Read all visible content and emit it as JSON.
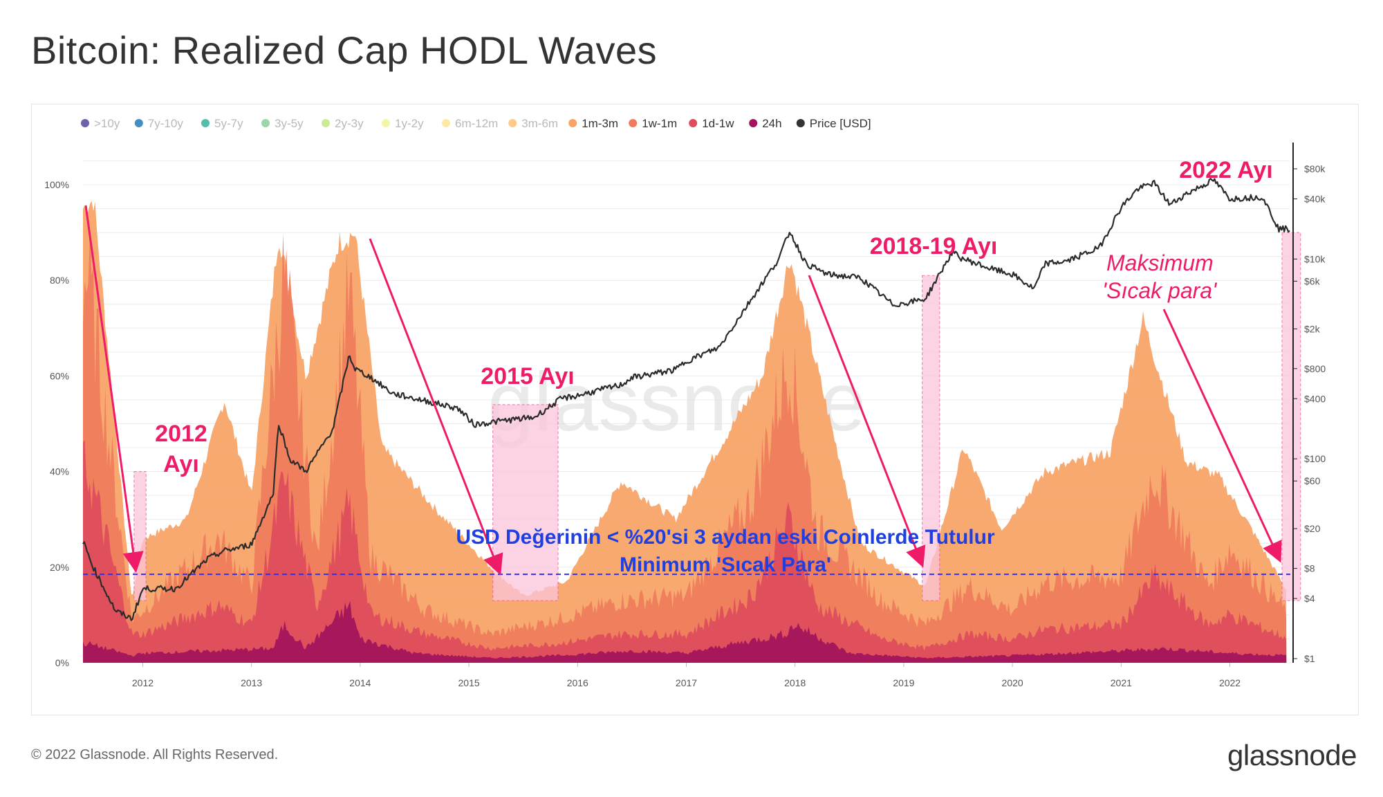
{
  "title": "Bitcoin: Realized Cap HODL Waves",
  "footer": {
    "copyright": "© 2022 Glassnode. All Rights Reserved.",
    "logo": "glassnode"
  },
  "watermark": "glassnode",
  "legend": [
    {
      "label": ">10y",
      "color": "#5e4fa2",
      "active": false
    },
    {
      "label": "7y-10y",
      "color": "#3182bd",
      "active": false
    },
    {
      "label": "5y-7y",
      "color": "#3fb8a0",
      "active": false
    },
    {
      "label": "3y-5y",
      "color": "#8fd19e",
      "active": false
    },
    {
      "label": "2y-3y",
      "color": "#c6e88a",
      "active": false
    },
    {
      "label": "1y-2y",
      "color": "#f2f59c",
      "active": false
    },
    {
      "label": "6m-12m",
      "color": "#fde69a",
      "active": false
    },
    {
      "label": "3m-6m",
      "color": "#fdc57a",
      "active": false
    },
    {
      "label": "1m-3m",
      "color": "#f8a468",
      "active": true
    },
    {
      "label": "1w-1m",
      "color": "#ef7c5c",
      "active": true
    },
    {
      "label": "1d-1w",
      "color": "#dd4d5c",
      "active": true
    },
    {
      "label": "24h",
      "color": "#a3145c",
      "active": true
    },
    {
      "label": "Price [USD]",
      "color": "#333333",
      "active": true
    }
  ],
  "chart_data": {
    "type": "area",
    "title": "Bitcoin: Realized Cap HODL Waves",
    "x_ticks": [
      "2012",
      "2013",
      "2014",
      "2015",
      "2016",
      "2017",
      "2018",
      "2019",
      "2020",
      "2021",
      "2022"
    ],
    "x_range": [
      2011.45,
      2022.55
    ],
    "y_left_ticks": [
      "0%",
      "20%",
      "40%",
      "60%",
      "80%",
      "100%"
    ],
    "y_left_range": [
      0,
      100
    ],
    "y_right_ticks": [
      "$1",
      "$4",
      "$8",
      "$20",
      "$60",
      "$100",
      "$400",
      "$800",
      "$2k",
      "$6k",
      "$10k",
      "$40k",
      "$80k"
    ],
    "y_right_range_log": [
      1,
      100000
    ],
    "series_cumulative_from_bottom": [
      {
        "name": "24h",
        "color": "#a3145c",
        "x": [
          2011.5,
          2011.9,
          2012.0,
          2013.2,
          2013.3,
          2013.5,
          2013.9,
          2014.0,
          2014.5,
          2015.2,
          2015.8,
          2016.5,
          2017.0,
          2017.9,
          2018.0,
          2018.5,
          2019.2,
          2020.0,
          2020.5,
          2021.0,
          2021.4,
          2022.0,
          2022.55
        ],
        "values": [
          4,
          1.5,
          2,
          3,
          8,
          3,
          12,
          5,
          2,
          1,
          1.5,
          2.5,
          2,
          6,
          8,
          2,
          1,
          1.5,
          2,
          2.5,
          3,
          2,
          1.5
        ]
      },
      {
        "name": "1d-1w",
        "color": "#dd4d5c",
        "x": [
          2011.5,
          2011.9,
          2012.0,
          2012.7,
          2013.0,
          2013.3,
          2013.6,
          2013.9,
          2014.1,
          2014.6,
          2015.2,
          2015.8,
          2016.4,
          2017.0,
          2017.6,
          2017.95,
          2018.2,
          2018.8,
          2019.2,
          2019.6,
          2020.0,
          2020.3,
          2021.0,
          2021.3,
          2021.8,
          2022.0,
          2022.55
        ],
        "values": [
          40,
          6,
          6,
          12,
          8,
          38,
          12,
          33,
          10,
          6,
          3,
          4,
          6,
          6,
          14,
          30,
          12,
          5,
          3,
          6,
          5,
          7,
          8,
          18,
          8,
          10,
          5
        ]
      },
      {
        "name": "1w-1m",
        "color": "#ef7c5c",
        "x": [
          2011.5,
          2011.9,
          2012.0,
          2012.7,
          2013.0,
          2013.3,
          2013.6,
          2013.9,
          2014.1,
          2014.6,
          2015.2,
          2015.8,
          2016.4,
          2017.0,
          2017.6,
          2017.95,
          2018.2,
          2018.8,
          2019.2,
          2019.6,
          2020.0,
          2020.3,
          2021.0,
          2021.3,
          2021.8,
          2022.0,
          2022.55
        ],
        "values": [
          80,
          9,
          11,
          26,
          16,
          82,
          22,
          78,
          22,
          11,
          6,
          9,
          13,
          14,
          34,
          64,
          28,
          13,
          8,
          16,
          11,
          17,
          18,
          40,
          16,
          24,
          10
        ]
      },
      {
        "name": "1m-3m",
        "color": "#f8a468",
        "x": [
          2011.45,
          2011.55,
          2011.9,
          2012.0,
          2012.4,
          2012.75,
          2013.0,
          2013.25,
          2013.5,
          2013.8,
          2013.95,
          2014.2,
          2014.7,
          2015.2,
          2015.5,
          2015.9,
          2016.4,
          2016.9,
          2017.3,
          2017.7,
          2017.95,
          2018.2,
          2018.6,
          2019.2,
          2019.55,
          2019.9,
          2020.3,
          2020.9,
          2021.2,
          2021.6,
          2021.9,
          2022.2,
          2022.55
        ],
        "values": [
          95,
          97,
          13,
          26,
          30,
          55,
          35,
          90,
          60,
          88,
          90,
          45,
          32,
          20,
          14,
          17,
          38,
          30,
          45,
          60,
          85,
          62,
          25,
          16,
          45,
          28,
          40,
          44,
          72,
          42,
          39,
          28,
          14
        ]
      }
    ],
    "price_usd": {
      "name": "Price [USD]",
      "color": "#333333",
      "x": [
        2011.45,
        2011.55,
        2011.75,
        2011.9,
        2012.0,
        2012.3,
        2012.6,
        2012.75,
        2012.9,
        2013.0,
        2013.2,
        2013.25,
        2013.35,
        2013.5,
        2013.75,
        2013.9,
        2013.95,
        2014.1,
        2014.3,
        2014.6,
        2014.9,
        2015.05,
        2015.3,
        2015.6,
        2015.85,
        2016.0,
        2016.4,
        2016.5,
        2016.9,
        2017.0,
        2017.3,
        2017.6,
        2017.85,
        2017.95,
        2018.1,
        2018.3,
        2018.6,
        2018.9,
        2019.0,
        2019.2,
        2019.45,
        2019.5,
        2019.8,
        2020.0,
        2020.2,
        2020.3,
        2020.5,
        2020.8,
        2021.0,
        2021.15,
        2021.3,
        2021.45,
        2021.6,
        2021.85,
        2022.0,
        2022.3,
        2022.45,
        2022.55
      ],
      "values": [
        15,
        8,
        3,
        2.5,
        5,
        5,
        10,
        12,
        13,
        14,
        45,
        230,
        100,
        75,
        200,
        1100,
        800,
        650,
        450,
        380,
        320,
        220,
        240,
        260,
        400,
        430,
        550,
        650,
        780,
        950,
        1300,
        4000,
        10000,
        19000,
        9000,
        7000,
        6500,
        3500,
        3600,
        4000,
        12000,
        10500,
        8000,
        7000,
        5000,
        9000,
        9500,
        13000,
        33000,
        50000,
        58000,
        35000,
        45000,
        62000,
        40000,
        42000,
        20000,
        20000
      ]
    }
  },
  "annotations": {
    "labels": [
      {
        "id": "2012",
        "lines": [
          "2012",
          "Ayı"
        ]
      },
      {
        "id": "2015",
        "lines": [
          "2015 Ayı"
        ]
      },
      {
        "id": "2018",
        "lines": [
          "2018-19 Ayı"
        ]
      },
      {
        "id": "2022",
        "lines": [
          "2022 Ayı"
        ]
      }
    ],
    "max_hot_money": [
      "Maksimum",
      "'Sıcak para'"
    ],
    "threshold_text": [
      "USD Değerinin < %20'si 3 aydan eski Coinlerde Tutulur",
      "Minimum 'Sıcak Para'"
    ],
    "threshold_value_pct": 18.5
  },
  "colors": {
    "annotation_red": "#ee1b68",
    "annotation_blue": "#1f3fe0",
    "highlight_fill": "#fbc5dd"
  }
}
